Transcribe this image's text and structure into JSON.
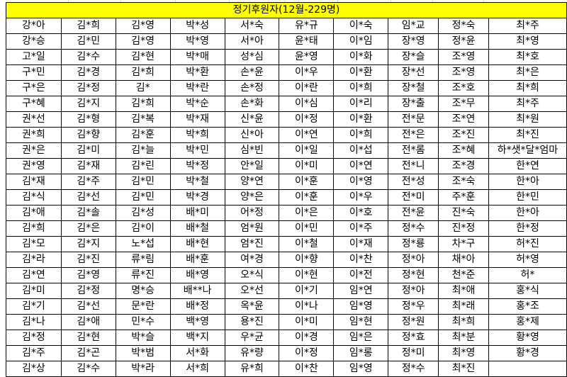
{
  "sheet": {
    "title": "정기후원자(12월-229명)",
    "colors": {
      "title_bg": "#ffff00",
      "border": "#000000"
    },
    "rows": [
      [
        "강*아",
        "김*희",
        "김*영",
        "박*성",
        "서*숙",
        "유*규",
        "이*숙",
        "임*교",
        "정*숙",
        "최*주"
      ],
      [
        "강*승",
        "김*민",
        "김*영",
        "박*영",
        "서*아",
        "윤*태",
        "이*임",
        "장*영",
        "정*윤",
        "최*영"
      ],
      [
        "고*일",
        "김*수",
        "김*현",
        "박*매",
        "성*심",
        "윤*영",
        "이*화",
        "장*슬",
        "조*영",
        "최*호"
      ],
      [
        "구*민",
        "김*경",
        "김*희",
        "박*환",
        "손*윤",
        "이*우",
        "이*환",
        "장*선",
        "조*영",
        "최*은"
      ],
      [
        "구*은",
        "김*정",
        "김*",
        "박*란",
        "손*정",
        "이*란",
        "이*희",
        "장*철",
        "조*호",
        "최*희"
      ],
      [
        "구*혜",
        "김*지",
        "김*희",
        "박*순",
        "손*화",
        "이*심",
        "이*리",
        "장*출",
        "조*무",
        "최*주"
      ],
      [
        "권*선",
        "김*형",
        "김*복",
        "박*재",
        "신*윤",
        "이*정",
        "이*환",
        "전*문",
        "조*연",
        "최*원"
      ],
      [
        "권*희",
        "김*향",
        "김*훈",
        "박*희",
        "신*아",
        "이*연",
        "이*희",
        "전*은",
        "조*진",
        "최*진"
      ],
      [
        "권*은",
        "김*미",
        "김*늘",
        "박*민",
        "심*빈",
        "이*일",
        "이*섭",
        "전*롬",
        "조*혜",
        "하*샛*달*엄마"
      ],
      [
        "권*영",
        "김*재",
        "김*린",
        "박*정",
        "안*일",
        "이*미",
        "이*연",
        "전*니",
        "조*경",
        "한*연"
      ],
      [
        "김*재",
        "김*주",
        "김*민",
        "박*철",
        "양*연",
        "이*훈",
        "이*영",
        "전*성",
        "조*숙",
        "한*아"
      ],
      [
        "김*식",
        "김*선",
        "김*민",
        "박*경",
        "양*은",
        "이*훈",
        "이*우",
        "전*미",
        "주*훈",
        "한*민"
      ],
      [
        "김*애",
        "김*솔",
        "김*성",
        "배*미",
        "어*정",
        "이*은",
        "이*호",
        "전*윤",
        "진*숙",
        "한*아"
      ],
      [
        "김*희",
        "김*은",
        "김*이",
        "배*철",
        "엄*원",
        "이*민",
        "이*주",
        "정*수",
        "진*정",
        "한*정"
      ],
      [
        "김*모",
        "김*지",
        "노*섭",
        "배*현",
        "엄*진",
        "이*철",
        "이*재",
        "정*룡",
        "차*구",
        "허*진"
      ],
      [
        "김*라",
        "김*진",
        "류*림",
        "배*훈",
        "여*경",
        "이*향",
        "이*찬",
        "정*아",
        "채*아",
        "허*영"
      ],
      [
        "김*연",
        "김*영",
        "류*진",
        "배*영",
        "오*식",
        "이*현",
        "이*전",
        "정*현",
        "천*준",
        "허*"
      ],
      [
        "김*미",
        "김*정",
        "명*승",
        "배**나",
        "오*선",
        "이*기",
        "임*연",
        "정*아",
        "최*애",
        "홍*식"
      ],
      [
        "김*기",
        "김*선",
        "문*란",
        "배*정",
        "옥*윤",
        "이*나",
        "임*영",
        "정*우",
        "최*래",
        "홍*조"
      ],
      [
        "김*나",
        "김*애",
        "민*수",
        "백*영",
        "용*진",
        "이*미",
        "임*현",
        "정*원",
        "최*희",
        "홍*제"
      ],
      [
        "김*정",
        "김*현",
        "박*슬",
        "백*지",
        "우*균",
        "이*경",
        "임*은",
        "정*효",
        "최*분",
        "황*영"
      ],
      [
        "김*주",
        "김*곤",
        "박*범",
        "서*화",
        "유*량",
        "이*정",
        "임*롱",
        "정*미",
        "최*영",
        "황*경"
      ],
      [
        "김*상",
        "김*수",
        "박*라",
        "서*희",
        "유*희",
        "이*찬",
        "임*영",
        "정*수",
        "최*진",
        ""
      ]
    ]
  }
}
